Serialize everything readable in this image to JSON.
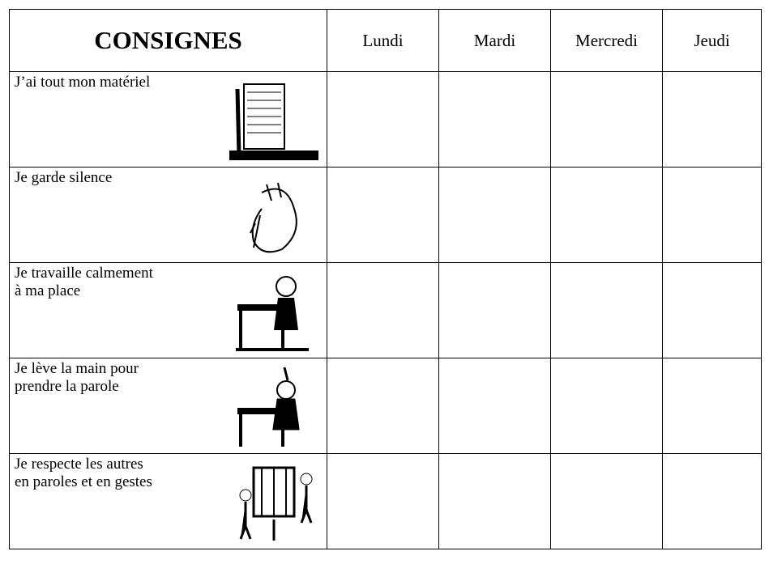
{
  "header": {
    "title": "CONSIGNES",
    "days": [
      "Lundi",
      "Mardi",
      "Mercredi",
      "Jeudi"
    ]
  },
  "rows": [
    {
      "lines": [
        "J’ai tout mon matériel"
      ]
    },
    {
      "lines": [
        "Je garde silence"
      ]
    },
    {
      "lines": [
        "Je travaille calmement",
        "à ma place"
      ]
    },
    {
      "lines": [
        "Je lève la main pour",
        "prendre la parole"
      ]
    },
    {
      "lines": [
        "Je respecte les autres",
        "en paroles et en gestes"
      ]
    }
  ]
}
